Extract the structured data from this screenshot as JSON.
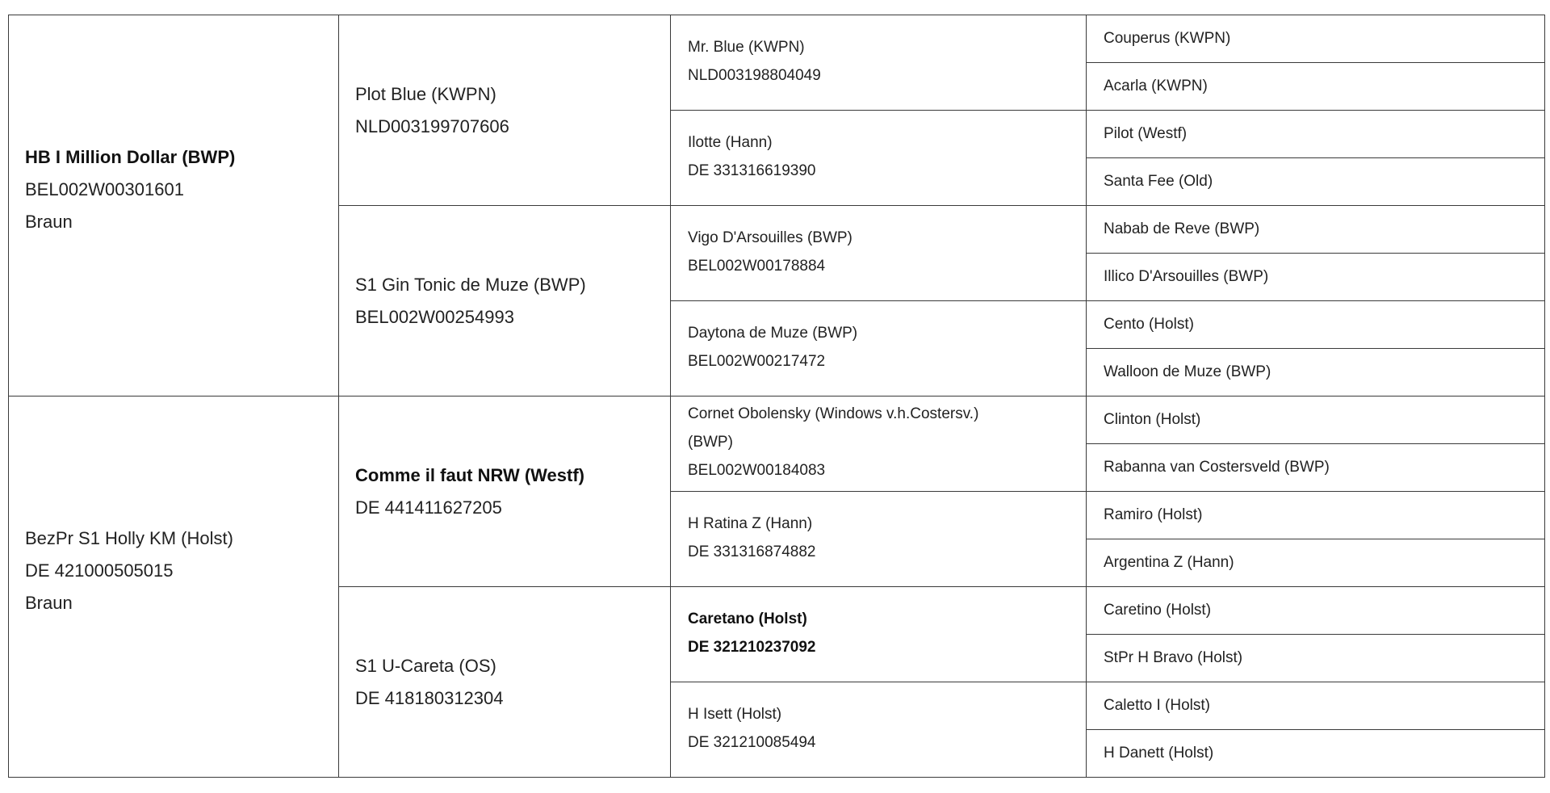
{
  "pedigree": {
    "gen1": [
      {
        "lines": [
          "HB I Million Dollar (BWP)",
          "BEL002W00301601",
          "Braun"
        ],
        "bold": [
          0
        ]
      },
      {
        "lines": [
          "BezPr S1 Holly KM (Holst)",
          "DE 421000505015",
          "Braun"
        ],
        "bold": []
      }
    ],
    "gen2": [
      {
        "lines": [
          "Plot Blue (KWPN)",
          "NLD003199707606"
        ],
        "bold": []
      },
      {
        "lines": [
          "S1 Gin Tonic de Muze (BWP)",
          "BEL002W00254993"
        ],
        "bold": []
      },
      {
        "lines": [
          "Comme il faut NRW (Westf)",
          "DE 441411627205"
        ],
        "bold": [
          0
        ]
      },
      {
        "lines": [
          "S1 U-Careta (OS)",
          "DE 418180312304"
        ],
        "bold": []
      }
    ],
    "gen3": [
      {
        "lines": [
          "Mr. Blue (KWPN)",
          "NLD003198804049"
        ],
        "bold": []
      },
      {
        "lines": [
          "Ilotte (Hann)",
          "DE 331316619390"
        ],
        "bold": []
      },
      {
        "lines": [
          "Vigo D'Arsouilles (BWP)",
          "BEL002W00178884"
        ],
        "bold": []
      },
      {
        "lines": [
          "Daytona de Muze (BWP)",
          "BEL002W00217472"
        ],
        "bold": []
      },
      {
        "lines": [
          "Cornet Obolensky (Windows v.h.Costersv.) (BWP)",
          "BEL002W00184083"
        ],
        "bold": []
      },
      {
        "lines": [
          "H Ratina Z (Hann)",
          "DE 331316874882"
        ],
        "bold": []
      },
      {
        "lines": [
          "Caretano (Holst)",
          "DE 321210237092"
        ],
        "bold": [
          0,
          1
        ]
      },
      {
        "lines": [
          "H Isett (Holst)",
          "DE 321210085494"
        ],
        "bold": []
      }
    ],
    "gen4": [
      "Couperus (KWPN)",
      "Acarla (KWPN)",
      "Pilot (Westf)",
      "Santa Fee (Old)",
      "Nabab de Reve (BWP)",
      "Illico D'Arsouilles (BWP)",
      "Cento (Holst)",
      "Walloon de Muze (BWP)",
      "Clinton (Holst)",
      "Rabanna van Costersveld (BWP)",
      "Ramiro (Holst)",
      "Argentina Z (Hann)",
      "Caretino (Holst)",
      "StPr H Bravo (Holst)",
      "Caletto I (Holst)",
      "H Danett (Holst)"
    ]
  }
}
